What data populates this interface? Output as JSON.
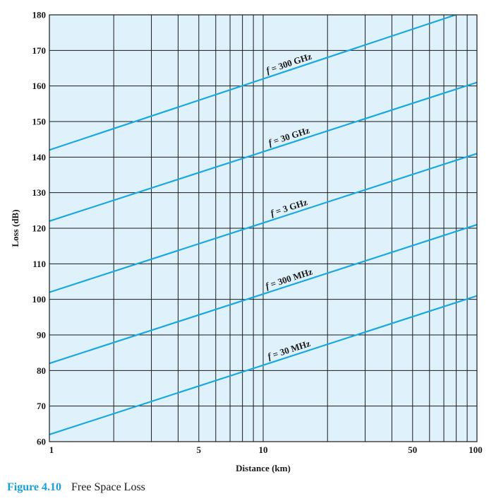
{
  "chart_data": {
    "type": "line",
    "title": "",
    "xlabel": "Distance (km)",
    "ylabel": "Loss (dB)",
    "x_scale": "log",
    "xlim": [
      1,
      100
    ],
    "ylim": [
      60,
      180
    ],
    "x_ticks": [
      "1",
      "5",
      "10",
      "50",
      "100"
    ],
    "y_ticks": [
      "60",
      "70",
      "80",
      "90",
      "100",
      "110",
      "120",
      "130",
      "140",
      "150",
      "160",
      "170",
      "180"
    ],
    "grid": true,
    "background_color": "#dff1fb",
    "line_color": "#1aa8e0",
    "series": [
      {
        "name": "f = 300 GHz",
        "label_prefix": "f",
        "label_rest": " = 300 GHz",
        "x": [
          1,
          100
        ],
        "y": [
          142,
          182
        ]
      },
      {
        "name": "f = 30 GHz",
        "label_prefix": "f",
        "label_rest": " = 30 GHz",
        "x": [
          1,
          100
        ],
        "y": [
          122,
          161
        ]
      },
      {
        "name": "f = 3 GHz",
        "label_prefix": "f",
        "label_rest": " = 3 GHz",
        "x": [
          1,
          100
        ],
        "y": [
          102,
          141
        ]
      },
      {
        "name": "f = 300 MHz",
        "label_prefix": "f",
        "label_rest": " = 300 MHz",
        "x": [
          1,
          100
        ],
        "y": [
          82,
          121
        ]
      },
      {
        "name": "f = 30 MHz",
        "label_prefix": "f",
        "label_rest": " = 30 MHz",
        "x": [
          1,
          100
        ],
        "y": [
          62,
          101
        ]
      }
    ]
  },
  "caption": {
    "figure": "Figure 4.10",
    "text": "Free Space Loss"
  }
}
